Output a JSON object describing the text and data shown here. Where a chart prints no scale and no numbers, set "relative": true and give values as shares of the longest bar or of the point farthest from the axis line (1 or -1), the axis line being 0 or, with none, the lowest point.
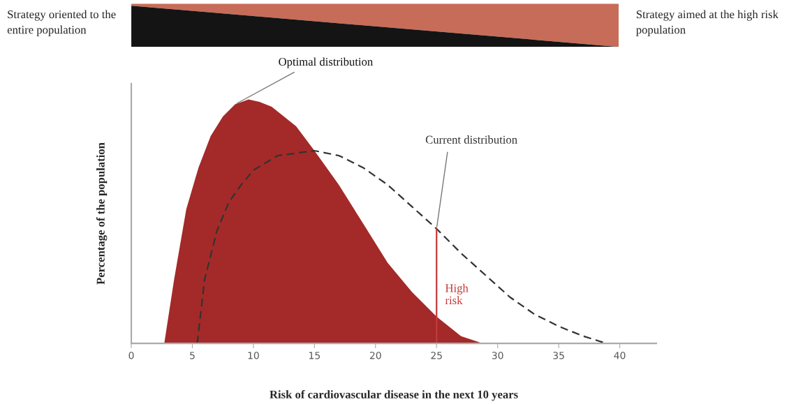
{
  "chart_data": {
    "type": "area",
    "xlabel": "Risk of cardiovascular disease in the next 10 years",
    "ylabel": "Percentage of the population",
    "relative": true,
    "xlim": [
      0,
      43
    ],
    "xticks": [
      0,
      5,
      10,
      15,
      20,
      25,
      30,
      35,
      40
    ],
    "grid": false,
    "legend": false,
    "series": [
      {
        "name": "Optimal distribution",
        "color": "#a32a28",
        "x": [
          2.7,
          3.5,
          4.5,
          5.5,
          6.5,
          7.5,
          8.5,
          9.6,
          10.5,
          11.5,
          12.5,
          13.5,
          15,
          17,
          19,
          21,
          23,
          25,
          27,
          28.8
        ],
        "values": [
          0,
          0.26,
          0.55,
          0.72,
          0.85,
          0.93,
          0.98,
          1.0,
          0.99,
          0.97,
          0.93,
          0.89,
          0.79,
          0.65,
          0.49,
          0.33,
          0.21,
          0.11,
          0.03,
          0
        ]
      },
      {
        "name": "Current distribution",
        "type": "line",
        "line_style": "dashed",
        "color": "#333333",
        "x": [
          5.4,
          6,
          7,
          8,
          9,
          10,
          12,
          15,
          17,
          19,
          21,
          23,
          25,
          27,
          29,
          31,
          33,
          35,
          37,
          38.9
        ],
        "values": [
          0,
          0.26,
          0.46,
          0.58,
          0.65,
          0.71,
          0.77,
          0.79,
          0.77,
          0.72,
          0.65,
          0.56,
          0.47,
          0.37,
          0.28,
          0.19,
          0.12,
          0.07,
          0.03,
          0
        ]
      }
    ],
    "ref_lines": [
      {
        "axis": "x",
        "value": 25,
        "label": "High risk",
        "color": "#c43a3a"
      }
    ],
    "annotations": [
      "Strategy oriented to the entire population",
      "Strategy aimed at the high risk population"
    ]
  }
}
